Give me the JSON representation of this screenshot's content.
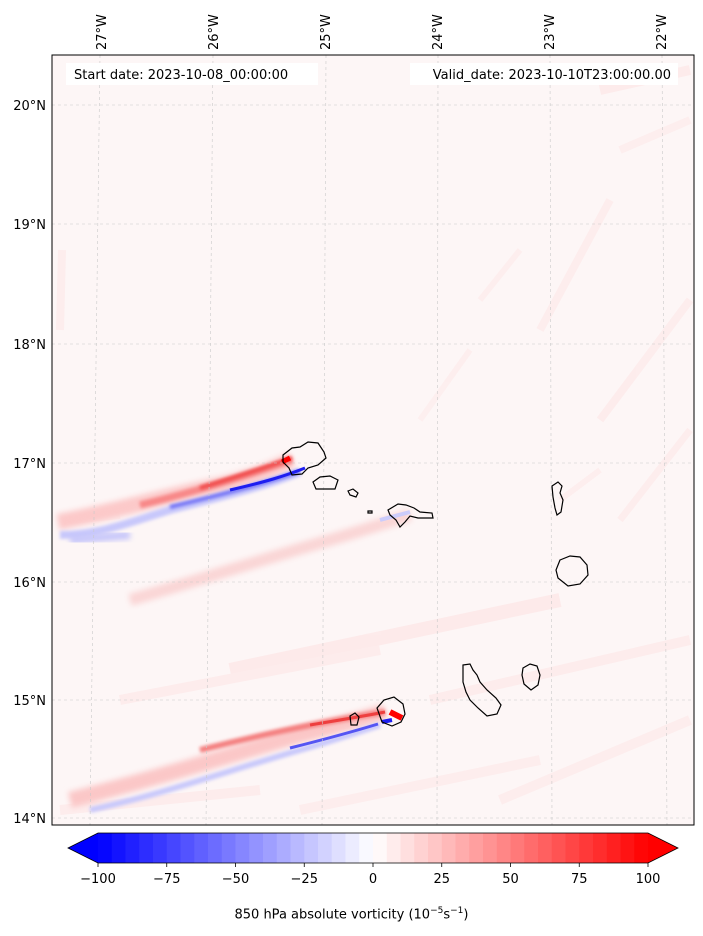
{
  "header": {
    "start_date": "Start date: 2023-10-08_00:00:00",
    "valid_date": "Valid_date: 2023-10-10T23:00:00.00"
  },
  "map": {
    "lon_labels": [
      "27°W",
      "26°W",
      "25°W",
      "24°W",
      "23°W",
      "22°W"
    ],
    "lat_labels": [
      "20°N",
      "19°N",
      "18°N",
      "17°N",
      "16°N",
      "15°N",
      "14°N"
    ]
  },
  "colorbar": {
    "ticks": [
      "−100",
      "−75",
      "−50",
      "−25",
      "0",
      "25",
      "50",
      "75",
      "100"
    ],
    "title_text": "850 hPa absolute vorticity (10",
    "title_exp1": "−5",
    "title_mid": "s",
    "title_exp2": "−1",
    "title_end": ")",
    "min_color": "#0000ff",
    "mid_color": "#ffffff",
    "max_color": "#ff0000"
  }
}
